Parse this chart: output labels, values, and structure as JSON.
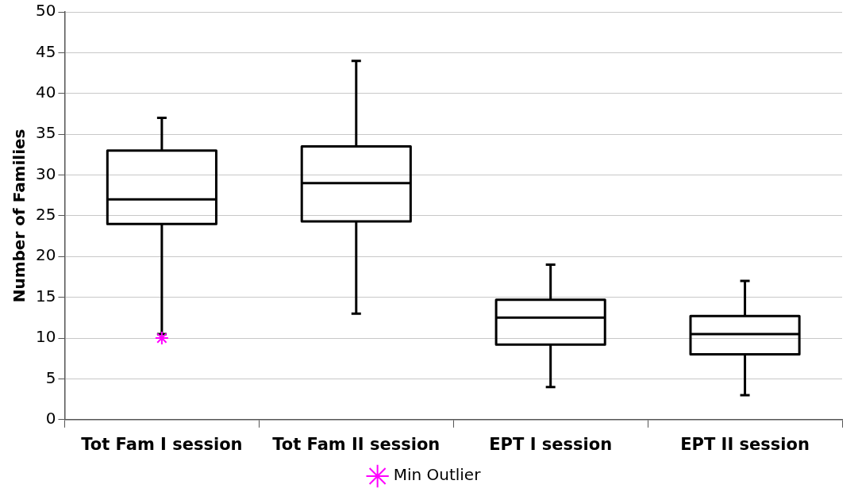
{
  "chart_data": {
    "type": "box",
    "ylabel": "Number of Families",
    "categories": [
      "Tot Fam I session",
      "Tot Fam II session",
      "EPT I session",
      "EPT II session"
    ],
    "boxes": [
      {
        "low": 10.5,
        "q1": 24,
        "median": 27,
        "q3": 33,
        "high": 37
      },
      {
        "low": 13,
        "q1": 24.3,
        "median": 29,
        "q3": 33.5,
        "high": 44
      },
      {
        "low": 4,
        "q1": 9.2,
        "median": 12.5,
        "q3": 14.7,
        "high": 19
      },
      {
        "low": 3,
        "q1": 8,
        "median": 10.5,
        "q3": 12.7,
        "high": 17
      }
    ],
    "color": "#000000",
    "series": [
      {
        "name": "Min Outlier",
        "type": "scatter",
        "color": "#ff00ff",
        "x": [
          "Tot Fam I session"
        ],
        "values": [
          10
        ]
      }
    ],
    "marker": "cross",
    "ylim": [
      0,
      50
    ],
    "yticks": [
      0,
      5,
      10,
      15,
      20,
      25,
      30,
      35,
      40,
      45,
      50
    ],
    "grid": "y",
    "legend": "bottom"
  }
}
